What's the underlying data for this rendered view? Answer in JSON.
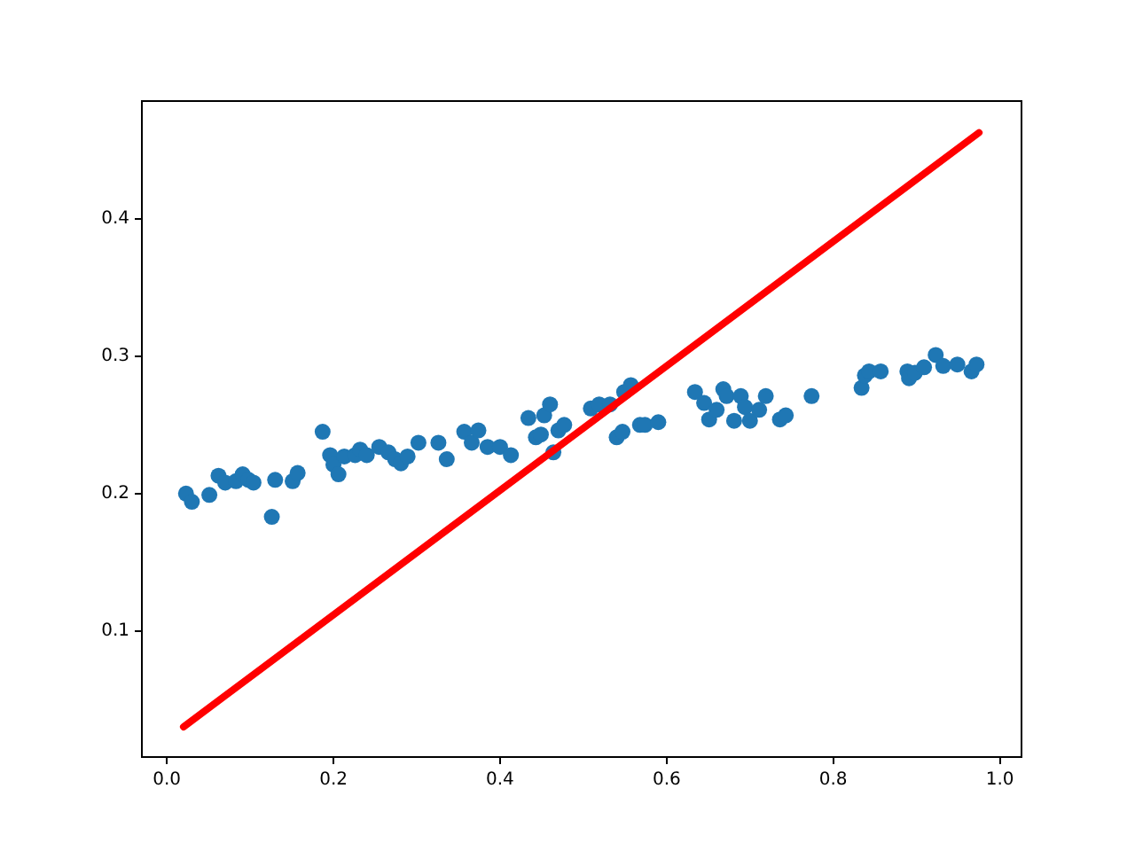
{
  "chart_data": {
    "type": "scatter",
    "grid": false,
    "legend": false,
    "xlim": [
      -0.03,
      1.026
    ],
    "ylim": [
      0.008,
      0.486
    ],
    "xticks": [
      {
        "value": 0,
        "label": "0.0"
      },
      0.2,
      0.4,
      0.6,
      0.8,
      {
        "value": 1,
        "label": "1.0"
      }
    ],
    "yticks": [
      0.1,
      0.2,
      0.3,
      0.4
    ],
    "series": [
      {
        "marker": "circle",
        "color": "#1f77b4",
        "x": [
          0.023,
          0.03,
          0.051,
          0.062,
          0.07,
          0.083,
          0.091,
          0.098,
          0.104,
          0.13,
          0.126,
          0.151,
          0.157,
          0.187,
          0.196,
          0.2,
          0.206,
          0.213,
          0.226,
          0.232,
          0.24,
          0.255,
          0.266,
          0.274,
          0.281,
          0.289,
          0.302,
          0.326,
          0.336,
          0.357,
          0.366,
          0.374,
          0.385,
          0.4,
          0.413,
          0.434,
          0.443,
          0.449,
          0.453,
          0.46,
          0.47,
          0.477,
          0.464,
          0.509,
          0.519,
          0.532,
          0.54,
          0.547,
          0.549,
          0.557,
          0.568,
          0.574,
          0.59,
          0.634,
          0.645,
          0.651,
          0.66,
          0.668,
          0.672,
          0.681,
          0.689,
          0.694,
          0.7,
          0.711,
          0.719,
          0.736,
          0.743,
          0.774,
          0.834,
          0.838,
          0.843,
          0.857,
          0.889,
          0.891,
          0.898,
          0.909,
          0.923,
          0.932,
          0.949,
          0.966,
          0.972
        ],
        "values": [
          0.2,
          0.194,
          0.199,
          0.213,
          0.208,
          0.209,
          0.214,
          0.21,
          0.208,
          0.21,
          0.183,
          0.209,
          0.215,
          0.245,
          0.228,
          0.221,
          0.214,
          0.227,
          0.228,
          0.232,
          0.228,
          0.234,
          0.23,
          0.225,
          0.222,
          0.227,
          0.237,
          0.237,
          0.225,
          0.245,
          0.237,
          0.246,
          0.234,
          0.234,
          0.228,
          0.255,
          0.241,
          0.243,
          0.257,
          0.265,
          0.246,
          0.25,
          0.23,
          0.262,
          0.265,
          0.265,
          0.241,
          0.245,
          0.274,
          0.279,
          0.25,
          0.25,
          0.252,
          0.274,
          0.266,
          0.254,
          0.261,
          0.276,
          0.271,
          0.253,
          0.271,
          0.263,
          0.253,
          0.261,
          0.271,
          0.254,
          0.257,
          0.271,
          0.277,
          0.286,
          0.289,
          0.289,
          0.289,
          0.284,
          0.288,
          0.292,
          0.301,
          0.293,
          0.294,
          0.289,
          0.294
        ]
      },
      {
        "type": "line",
        "color": "#ff0000",
        "x": [
          0.02,
          0.975
        ],
        "values": [
          0.03,
          0.463
        ]
      }
    ]
  }
}
